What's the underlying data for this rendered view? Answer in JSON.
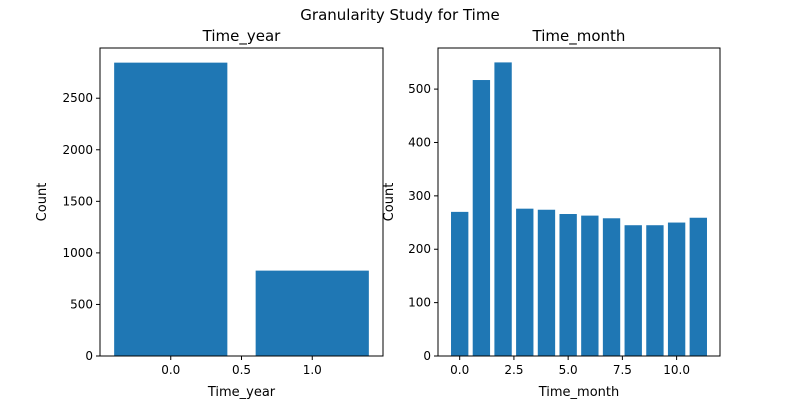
{
  "figure_title": "Granularity Study for Time",
  "chart_data": [
    {
      "type": "bar",
      "title": "Time_year",
      "xlabel": "Time_year",
      "ylabel": "Count",
      "x": [
        0,
        1
      ],
      "values": [
        2845,
        828
      ],
      "xlim": [
        -0.5,
        1.5
      ],
      "ylim": [
        0,
        2987
      ],
      "xticks": [
        0.0,
        0.5,
        1.0
      ],
      "xtick_labels": [
        "0.0",
        "0.5",
        "1.0"
      ],
      "yticks": [
        0,
        500,
        1000,
        1500,
        2000,
        2500
      ],
      "ytick_labels": [
        "0",
        "500",
        "1000",
        "1500",
        "2000",
        "2500"
      ],
      "bar_width": 0.8,
      "color": "#1f77b4",
      "grid": false
    },
    {
      "type": "bar",
      "title": "Time_month",
      "xlabel": "Time_month",
      "ylabel": "Count",
      "x": [
        0,
        1,
        2,
        3,
        4,
        5,
        6,
        7,
        8,
        9,
        10,
        11
      ],
      "values": [
        270,
        517,
        550,
        276,
        274,
        266,
        263,
        258,
        245,
        245,
        250,
        259
      ],
      "xlim": [
        -1.0,
        12.0
      ],
      "ylim": [
        0,
        577
      ],
      "xticks": [
        0.0,
        2.5,
        5.0,
        7.5,
        10.0
      ],
      "xtick_labels": [
        "0.0",
        "2.5",
        "5.0",
        "7.5",
        "10.0"
      ],
      "yticks": [
        0,
        100,
        200,
        300,
        400,
        500
      ],
      "ytick_labels": [
        "0",
        "100",
        "200",
        "300",
        "400",
        "500"
      ],
      "bar_width": 0.8,
      "color": "#1f77b4",
      "grid": false
    }
  ]
}
